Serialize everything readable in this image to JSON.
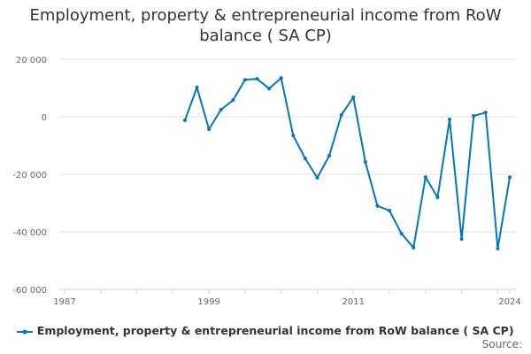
{
  "chart_data": {
    "type": "line",
    "title": "Employment, property & entrepreneurial income from RoW balance ( SA CP)",
    "x": [
      1997,
      1998,
      1999,
      2000,
      2001,
      2002,
      2003,
      2004,
      2005,
      2006,
      2007,
      2008,
      2009,
      2010,
      2011,
      2012,
      2013,
      2014,
      2015,
      2016,
      2017,
      2018,
      2019,
      2020,
      2021,
      2022,
      2023,
      2024
    ],
    "series": [
      {
        "name": "Employment, property & entrepreneurial income from RoW balance ( SA CP)",
        "color": "#0077be",
        "values": [
          -1200,
          10200,
          -4300,
          2500,
          5800,
          12900,
          13200,
          9800,
          13500,
          -6500,
          -14500,
          -21200,
          -13500,
          600,
          6800,
          -15700,
          -31000,
          -32600,
          -40600,
          -45500,
          -21000,
          -28000,
          -900,
          -42500,
          300,
          1500,
          -45800,
          -21000
        ]
      }
    ],
    "xlim": [
      1987,
      2024
    ],
    "ylim": [
      -60000,
      20000
    ],
    "xticks": [
      "1987",
      "1999",
      "2011",
      "2024"
    ],
    "yticks": [
      "20 000",
      "0",
      "-20 000",
      "-40 000",
      "-60 000"
    ],
    "grid": true,
    "legend": "bottom"
  },
  "source_label": "Source:"
}
